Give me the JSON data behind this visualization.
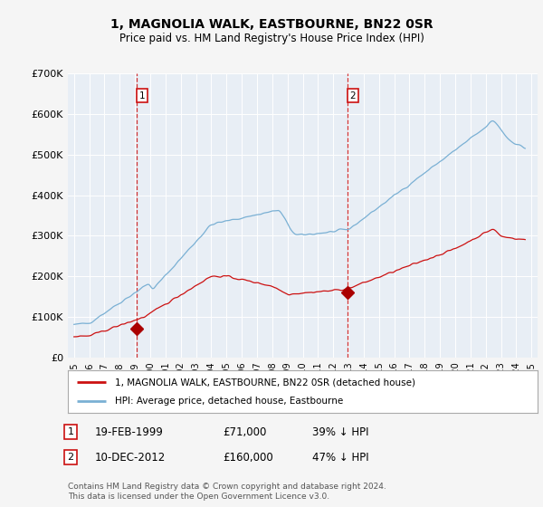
{
  "title": "1, MAGNOLIA WALK, EASTBOURNE, BN22 0SR",
  "subtitle": "Price paid vs. HM Land Registry's House Price Index (HPI)",
  "bg_color": "#f5f5f5",
  "plot_bg_color": "#e8eef5",
  "legend_label_red": "1, MAGNOLIA WALK, EASTBOURNE, BN22 0SR (detached house)",
  "legend_label_blue": "HPI: Average price, detached house, Eastbourne",
  "footer": "Contains HM Land Registry data © Crown copyright and database right 2024.\nThis data is licensed under the Open Government Licence v3.0.",
  "annotation1_label": "1",
  "annotation1_date": "19-FEB-1999",
  "annotation1_price": "£71,000",
  "annotation1_hpi": "39% ↓ HPI",
  "annotation2_label": "2",
  "annotation2_date": "10-DEC-2012",
  "annotation2_price": "£160,000",
  "annotation2_hpi": "47% ↓ HPI",
  "sale1_x": 1999.13,
  "sale1_y": 71000,
  "sale2_x": 2012.94,
  "sale2_y": 160000,
  "hpi_color": "#7ab0d4",
  "red_color": "#cc1111",
  "marker_color": "#aa0000",
  "ylim": [
    0,
    700000
  ],
  "xlim": [
    1994.6,
    2025.4
  ],
  "yticks": [
    0,
    100000,
    200000,
    300000,
    400000,
    500000,
    600000,
    700000
  ],
  "xtick_years": [
    1995,
    1996,
    1997,
    1998,
    1999,
    2000,
    2001,
    2002,
    2003,
    2004,
    2005,
    2006,
    2007,
    2008,
    2009,
    2010,
    2011,
    2012,
    2013,
    2014,
    2015,
    2016,
    2017,
    2018,
    2019,
    2020,
    2021,
    2022,
    2023,
    2024,
    2025
  ]
}
